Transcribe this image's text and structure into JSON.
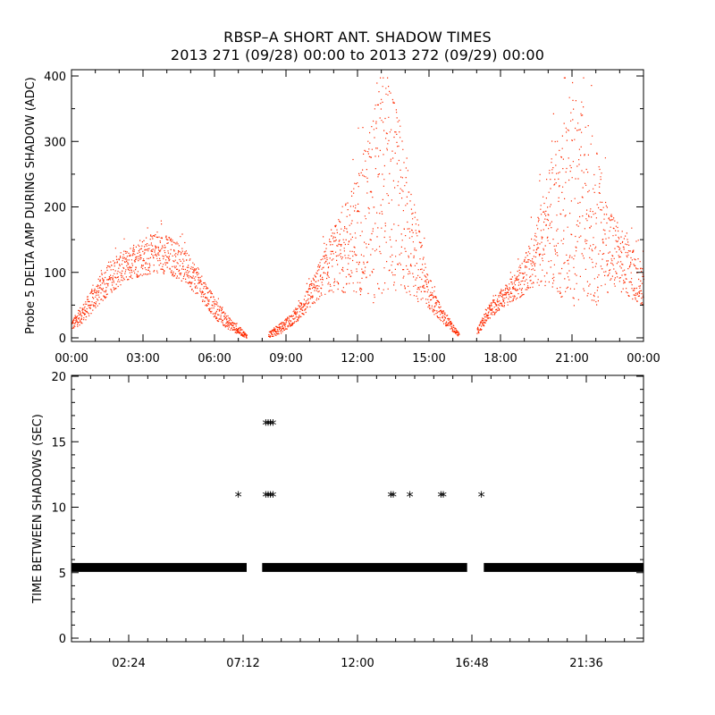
{
  "chart_data": [
    {
      "type": "scatter",
      "title": "RBSP–A SHORT ANT. SHADOW TIMES",
      "subtitle": "2013 271 (09/28) 00:00 to 2013 272 (09/29) 00:00",
      "ylabel": "Probe 5 DELTA AMP DURING SHADOW (ADC)",
      "xlabel": "",
      "xlim": [
        0,
        24
      ],
      "ylim": [
        0,
        400
      ],
      "x_unit": "hours",
      "x_tick_labels": [
        "00:00",
        "03:00",
        "06:00",
        "09:00",
        "12:00",
        "15:00",
        "18:00",
        "21:00",
        "00:00"
      ],
      "x_ticks": [
        0,
        3,
        6,
        9,
        12,
        15,
        18,
        21,
        24
      ],
      "y_ticks": [
        0,
        100,
        200,
        300,
        400
      ],
      "y_tick_labels": [
        "0",
        "100",
        "200",
        "300",
        "400"
      ],
      "color": "#ff2a00",
      "series": [
        {
          "envelope": {
            "x": [
              0.0,
              0.5,
              1.0,
              1.5,
              2.0,
              2.5,
              3.0,
              3.5,
              4.0,
              4.5,
              5.0,
              5.5,
              6.0,
              6.5,
              7.0,
              7.35,
              8.25,
              8.75,
              9.25,
              9.75,
              10.25,
              10.75,
              11.25,
              11.75,
              12.25,
              12.75,
              13.25,
              13.75,
              14.25,
              14.75,
              15.25,
              15.75,
              16.25,
              17.0,
              17.5,
              18.0,
              18.5,
              19.0,
              19.5,
              20.0,
              20.5,
              21.0,
              21.5,
              22.0,
              22.5,
              23.0,
              23.5,
              24.0
            ],
            "y": [
              20,
              40,
              65,
              90,
              105,
              115,
              125,
              130,
              128,
              118,
              100,
              75,
              45,
              25,
              12,
              3,
              5,
              15,
              30,
              50,
              80,
              110,
              130,
              150,
              175,
              210,
              230,
              200,
              150,
              90,
              50,
              25,
              5,
              10,
              40,
              60,
              75,
              95,
              130,
              170,
              190,
              210,
              200,
              170,
              140,
              120,
              100,
              80
            ],
            "spread": [
              8,
              15,
              20,
              25,
              25,
              25,
              30,
              30,
              30,
              28,
              25,
              20,
              15,
              10,
              6,
              3,
              5,
              8,
              10,
              15,
              25,
              40,
              60,
              80,
              110,
              160,
              170,
              130,
              90,
              40,
              15,
              8,
              3,
              5,
              12,
              15,
              20,
              30,
              50,
              90,
              130,
              160,
              160,
              120,
              70,
              50,
              40,
              30
            ]
          }
        }
      ]
    },
    {
      "type": "scatter",
      "ylabel": "TIME BETWEEN SHADOWS (SEC)",
      "xlabel": "",
      "xlim": [
        0,
        24
      ],
      "ylim": [
        0,
        20
      ],
      "x_unit": "hours",
      "x_ticks": [
        2.4,
        7.2,
        12.0,
        16.8,
        21.6
      ],
      "x_tick_labels": [
        "02:24",
        "07:12",
        "12:00",
        "16:48",
        "21:36"
      ],
      "y_ticks": [
        0,
        5,
        10,
        15,
        20
      ],
      "y_tick_labels": [
        "0",
        "5",
        "10",
        "15",
        "20"
      ],
      "marker": "*",
      "color": "#000000",
      "bands": [
        {
          "x": [
            0.0,
            7.35
          ],
          "y": 5.4
        },
        {
          "x": [
            8.0,
            16.6
          ],
          "y": 5.4
        },
        {
          "x": [
            17.3,
            24.0
          ],
          "y": 5.4
        }
      ],
      "points": [
        {
          "x": 7.0,
          "y": 11.0
        },
        {
          "x": 8.15,
          "y": 11.0
        },
        {
          "x": 8.25,
          "y": 11.0
        },
        {
          "x": 8.35,
          "y": 11.0
        },
        {
          "x": 8.45,
          "y": 11.0
        },
        {
          "x": 8.15,
          "y": 16.5
        },
        {
          "x": 8.25,
          "y": 16.5
        },
        {
          "x": 8.35,
          "y": 16.5
        },
        {
          "x": 8.45,
          "y": 16.5
        },
        {
          "x": 13.4,
          "y": 11.0
        },
        {
          "x": 13.5,
          "y": 11.0
        },
        {
          "x": 14.2,
          "y": 11.0
        },
        {
          "x": 15.5,
          "y": 11.0
        },
        {
          "x": 15.6,
          "y": 11.0
        },
        {
          "x": 17.2,
          "y": 11.0
        }
      ]
    }
  ]
}
